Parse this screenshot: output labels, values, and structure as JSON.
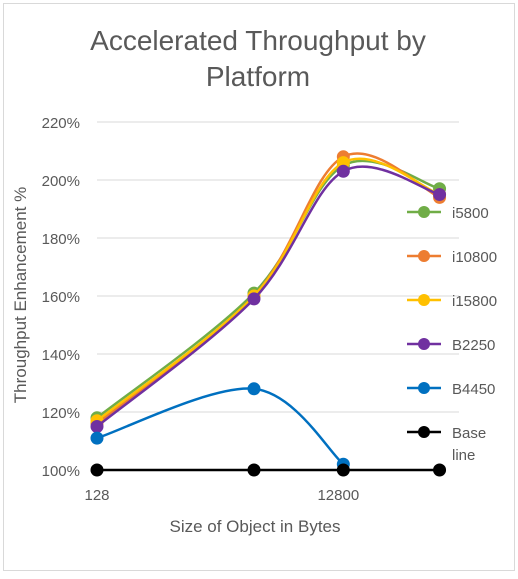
{
  "chart_data": {
    "type": "line",
    "title_lines": [
      "Accelerated Throughput by",
      "Platform"
    ],
    "xlabel": "Size of Object in Bytes",
    "ylabel": "Throughput Enhancement %",
    "x_scale": "log",
    "x_ticks": [
      {
        "value": 128,
        "label": "128"
      },
      {
        "value": 12800,
        "label": "12800"
      }
    ],
    "xlim": [
      128,
      128000
    ],
    "ylim": [
      100,
      220
    ],
    "y_ticks": [
      {
        "value": 100,
        "label": "100%"
      },
      {
        "value": 120,
        "label": "120%"
      },
      {
        "value": 140,
        "label": "140%"
      },
      {
        "value": 160,
        "label": "160%"
      },
      {
        "value": 180,
        "label": "180%"
      },
      {
        "value": 200,
        "label": "200%"
      },
      {
        "value": 220,
        "label": "220%"
      }
    ],
    "grid": "horizontal",
    "legend_position": "right",
    "series": [
      {
        "name": "i5800",
        "color": "#70AD47",
        "x": [
          128,
          2560,
          14080,
          88320
        ],
        "values": [
          118,
          161,
          205,
          197
        ]
      },
      {
        "name": "i10800",
        "color": "#ED7D31",
        "x": [
          128,
          2560,
          14080,
          88320
        ],
        "values": [
          116,
          160,
          208,
          194
        ]
      },
      {
        "name": "i15800",
        "color": "#FFC000",
        "x": [
          128,
          2560,
          14080,
          88320
        ],
        "values": [
          117,
          160,
          206,
          195
        ]
      },
      {
        "name": "B2250",
        "color": "#7030A0",
        "x": [
          128,
          2560,
          14080,
          88320
        ],
        "values": [
          115,
          159,
          203,
          195
        ]
      },
      {
        "name": "B4450",
        "color": "#0070C0",
        "x": [
          128,
          2560,
          14080
        ],
        "values": [
          111,
          128,
          102
        ]
      },
      {
        "name": "Base line",
        "color": "#000000",
        "x": [
          128,
          2560,
          14080,
          88320
        ],
        "values": [
          100,
          100,
          100,
          100
        ]
      }
    ]
  }
}
